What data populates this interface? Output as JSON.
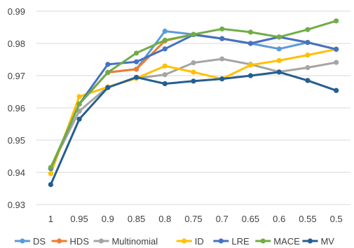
{
  "chart_data": {
    "type": "line",
    "title": "",
    "xlabel": "",
    "ylabel": "",
    "categories": [
      "1",
      "0.95",
      "0.9",
      "0.85",
      "0.8",
      "0.75",
      "0.7",
      "0.65",
      "0.6",
      "0.55",
      "0.5"
    ],
    "ylim": [
      0.93,
      0.99
    ],
    "yticks": [
      "0.93",
      "0.94",
      "0.95",
      "0.96",
      "0.97",
      "0.98",
      "0.99"
    ],
    "grid": "horizontal",
    "legend_position": "bottom",
    "series": [
      {
        "name": "DS",
        "color": "#5b9bd5",
        "values": [
          0.9412,
          0.9612,
          0.971,
          0.972,
          0.9838,
          0.9828,
          0.9815,
          0.98,
          0.9783,
          0.9803,
          0.9782
        ]
      },
      {
        "name": "HDS",
        "color": "#ed7d31",
        "values": [
          0.9412,
          0.9612,
          0.971,
          0.972,
          0.9808,
          0.9828,
          0.9815,
          0.98,
          0.982,
          0.9803,
          0.9782
        ]
      },
      {
        "name": "Multinomial",
        "color": "#a5a5a5",
        "values": [
          0.9415,
          0.959,
          0.9665,
          0.9692,
          0.9703,
          0.974,
          0.9752,
          0.9735,
          0.9712,
          0.9725,
          0.9741
        ]
      },
      {
        "name": "ID",
        "color": "#ffc000",
        "values": [
          0.9396,
          0.9635,
          0.9665,
          0.9692,
          0.973,
          0.9711,
          0.969,
          0.9733,
          0.9747,
          0.9764,
          0.9782
        ]
      },
      {
        "name": "LRE",
        "color": "#4472c4",
        "values": [
          0.9412,
          0.9612,
          0.9735,
          0.9743,
          0.9783,
          0.9827,
          0.9815,
          0.98,
          0.982,
          0.9803,
          0.9782
        ]
      },
      {
        "name": "MACE",
        "color": "#70ad47",
        "values": [
          0.9415,
          0.9612,
          0.971,
          0.977,
          0.981,
          0.9828,
          0.9845,
          0.9835,
          0.982,
          0.9843,
          0.987
        ]
      },
      {
        "name": "MV",
        "color": "#255e91",
        "values": [
          0.9362,
          0.9565,
          0.9663,
          0.9695,
          0.9675,
          0.9683,
          0.969,
          0.97,
          0.9711,
          0.9685,
          0.9654
        ]
      }
    ]
  }
}
